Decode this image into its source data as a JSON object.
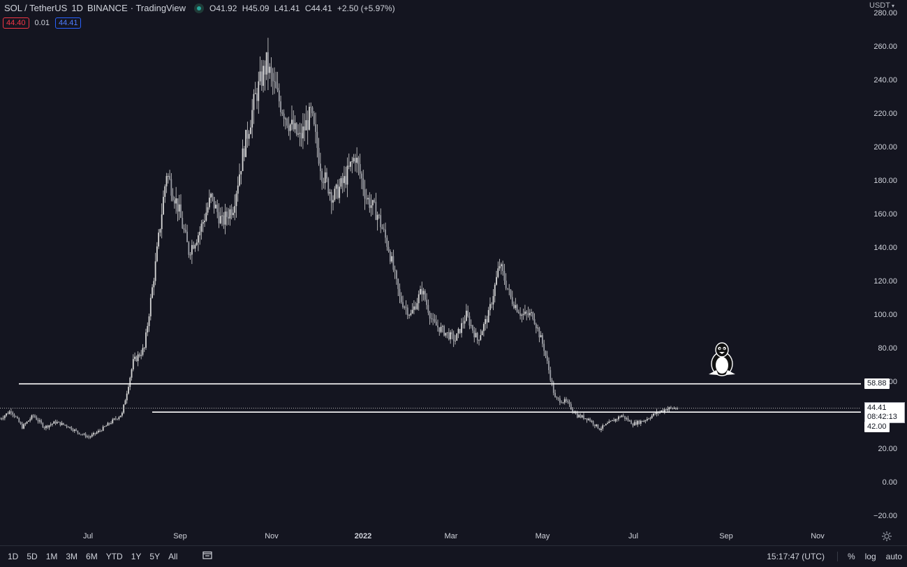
{
  "header": {
    "symbol": "SOL / TetherUS",
    "timeframe": "1D",
    "exchange": "BINANCE",
    "source": "· TradingView",
    "ohlc": {
      "o_key": "O",
      "o_val": "41.92",
      "h_key": "H",
      "h_val": "45.09",
      "l_key": "L",
      "l_val": "41.41",
      "c_key": "C",
      "c_val": "44.41",
      "change": "+2.50 (+5.97%)"
    }
  },
  "quote": {
    "bid": "44.40",
    "spread": "0.01",
    "ask": "44.41"
  },
  "price_axis": {
    "currency": "USDT",
    "ticks": [
      "280.00",
      "260.00",
      "240.00",
      "220.00",
      "200.00",
      "180.00",
      "160.00",
      "140.00",
      "120.00",
      "100.00",
      "80.00",
      "60.00",
      "40.00",
      "20.00",
      "0.00",
      "−20.00"
    ],
    "labels": {
      "level_upper": "58.88",
      "current_price": "44.41",
      "countdown": "08:42:13",
      "level_lower": "42.00"
    }
  },
  "time_axis": {
    "ticks": [
      "Jul",
      "Sep",
      "Nov",
      "2022",
      "Mar",
      "May",
      "Jul",
      "Sep",
      "Nov"
    ]
  },
  "bottom_bar": {
    "ranges": [
      "1D",
      "5D",
      "1M",
      "3M",
      "6M",
      "YTD",
      "1Y",
      "5Y",
      "All"
    ],
    "clock": "15:17:47 (UTC)",
    "percent": "%",
    "log": "log",
    "auto": "auto"
  },
  "colors": {
    "background": "#141520",
    "candle": "#d8d8d8",
    "line": "#ffffff",
    "bid": "#f23645",
    "ask": "#2962ff",
    "live_dot": "#26a69a"
  },
  "icons": {
    "chart_mascot": "penguin-icon",
    "settings": "gear-icon",
    "date_range": "calendar-range-icon"
  },
  "chart_data": {
    "type": "candlestick",
    "ylim": [
      -20,
      280
    ],
    "grid": false,
    "x_unit": "date",
    "horizontal_levels": [
      58.88,
      42.0
    ],
    "current_price": 44.41,
    "series": [
      {
        "values": [
          [
            "2021-05-25",
            38
          ],
          [
            "2021-06-01",
            43
          ],
          [
            "2021-06-08",
            33
          ],
          [
            "2021-06-15",
            40
          ],
          [
            "2021-06-22",
            33
          ],
          [
            "2021-06-29",
            36
          ],
          [
            "2021-07-06",
            34
          ],
          [
            "2021-07-13",
            30
          ],
          [
            "2021-07-20",
            27
          ],
          [
            "2021-07-27",
            31
          ],
          [
            "2021-08-03",
            36
          ],
          [
            "2021-08-10",
            41
          ],
          [
            "2021-08-17",
            72
          ],
          [
            "2021-08-24",
            80
          ],
          [
            "2021-08-31",
            130
          ],
          [
            "2021-09-07",
            185
          ],
          [
            "2021-09-14",
            165
          ],
          [
            "2021-09-21",
            138
          ],
          [
            "2021-09-28",
            150
          ],
          [
            "2021-10-05",
            170
          ],
          [
            "2021-10-12",
            155
          ],
          [
            "2021-10-19",
            165
          ],
          [
            "2021-10-26",
            200
          ],
          [
            "2021-11-02",
            230
          ],
          [
            "2021-11-09",
            250
          ],
          [
            "2021-11-16",
            230
          ],
          [
            "2021-11-23",
            215
          ],
          [
            "2021-11-30",
            205
          ],
          [
            "2021-12-07",
            220
          ],
          [
            "2021-12-14",
            185
          ],
          [
            "2021-12-21",
            170
          ],
          [
            "2021-12-28",
            180
          ],
          [
            "2022-01-04",
            195
          ],
          [
            "2022-01-11",
            170
          ],
          [
            "2022-01-18",
            160
          ],
          [
            "2022-01-25",
            140
          ],
          [
            "2022-02-01",
            110
          ],
          [
            "2022-02-08",
            100
          ],
          [
            "2022-02-15",
            115
          ],
          [
            "2022-02-22",
            95
          ],
          [
            "2022-03-01",
            90
          ],
          [
            "2022-03-08",
            85
          ],
          [
            "2022-03-15",
            100
          ],
          [
            "2022-03-22",
            85
          ],
          [
            "2022-03-29",
            100
          ],
          [
            "2022-04-05",
            130
          ],
          [
            "2022-04-12",
            110
          ],
          [
            "2022-04-19",
            100
          ],
          [
            "2022-04-26",
            100
          ],
          [
            "2022-05-03",
            80
          ],
          [
            "2022-05-10",
            50
          ],
          [
            "2022-05-17",
            48
          ],
          [
            "2022-05-24",
            40
          ],
          [
            "2022-05-31",
            38
          ],
          [
            "2022-06-07",
            32
          ],
          [
            "2022-06-14",
            36
          ],
          [
            "2022-06-21",
            40
          ],
          [
            "2022-06-28",
            35
          ],
          [
            "2022-07-05",
            37
          ],
          [
            "2022-07-12",
            41
          ],
          [
            "2022-07-19",
            44
          ],
          [
            "2022-07-26",
            44.41
          ]
        ]
      }
    ]
  }
}
